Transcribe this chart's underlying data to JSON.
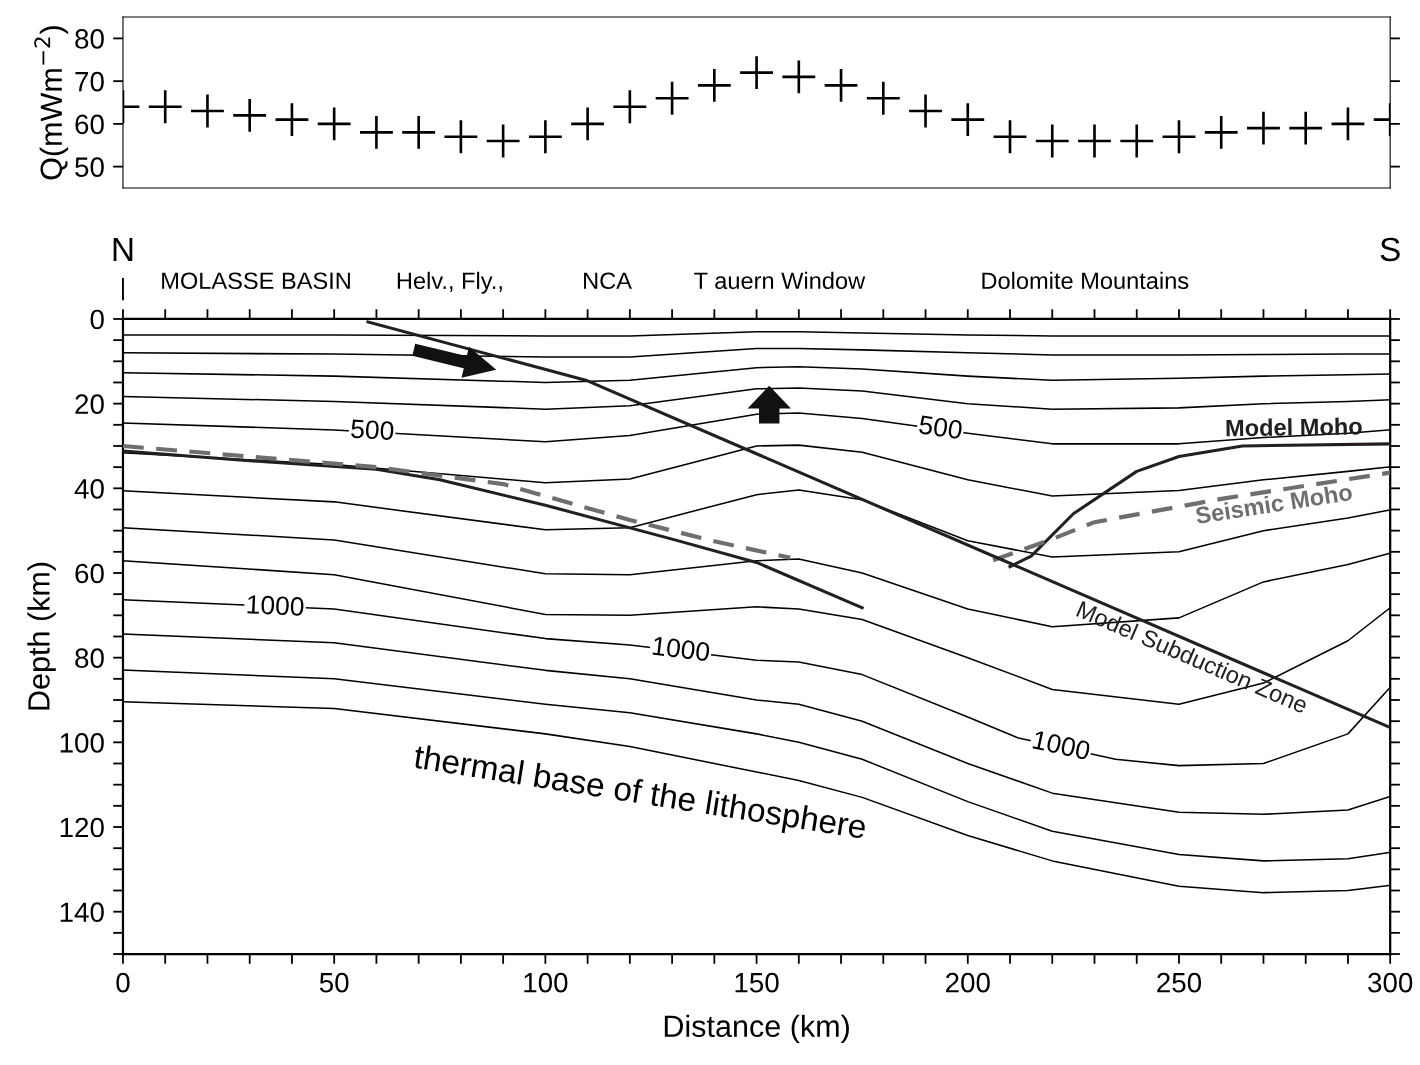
{
  "chart_data": [
    {
      "type": "scatter",
      "ylabel": "Q(mWm$^{−2}$)",
      "color": "#000000",
      "marker": "cross",
      "tick_labels": "y",
      "x": [
        0,
        10,
        20,
        30,
        40,
        50,
        60,
        70,
        80,
        90,
        100,
        110,
        120,
        130,
        140,
        150,
        160,
        170,
        180,
        190,
        200,
        210,
        220,
        230,
        240,
        250,
        260,
        270,
        280,
        290,
        300
      ],
      "values": [
        64,
        64,
        63,
        62,
        61,
        60,
        58,
        58,
        57,
        56,
        57,
        60,
        64,
        66,
        69,
        72,
        71,
        69,
        66,
        63,
        61,
        57,
        56,
        56,
        56,
        57,
        58,
        59,
        59,
        60,
        61
      ],
      "xlim": [
        0,
        300
      ],
      "ylim": [
        45,
        85
      ],
      "yticks": [
        50,
        60,
        70,
        80
      ]
    },
    {
      "type": "line",
      "xlabel": "Distance (km)",
      "ylabel": "Depth (km)",
      "xlim": [
        0,
        300
      ],
      "ylim": [
        150,
        0
      ],
      "xticks": [
        0,
        {
          "value": 10,
          "label": null
        },
        {
          "value": 20,
          "label": null
        },
        {
          "value": 30,
          "label": null
        },
        {
          "value": 40,
          "label": null
        },
        50,
        {
          "value": 60,
          "label": null
        },
        {
          "value": 70,
          "label": null
        },
        {
          "value": 80,
          "label": null
        },
        {
          "value": 90,
          "label": null
        },
        100,
        {
          "value": 110,
          "label": null
        },
        {
          "value": 120,
          "label": null
        },
        {
          "value": 130,
          "label": null
        },
        {
          "value": 140,
          "label": null
        },
        150,
        {
          "value": 160,
          "label": null
        },
        {
          "value": 170,
          "label": null
        },
        {
          "value": 180,
          "label": null
        },
        {
          "value": 190,
          "label": null
        },
        200,
        {
          "value": 210,
          "label": null
        },
        {
          "value": 220,
          "label": null
        },
        {
          "value": 230,
          "label": null
        },
        {
          "value": 240,
          "label": null
        },
        250,
        {
          "value": 260,
          "label": null
        },
        {
          "value": 270,
          "label": null
        },
        {
          "value": 280,
          "label": null
        },
        {
          "value": 290,
          "label": null
        },
        300
      ],
      "yticks": [
        0,
        {
          "value": 5,
          "label": null
        },
        {
          "value": 10,
          "label": null
        },
        {
          "value": 15,
          "label": null
        },
        20,
        {
          "value": 25,
          "label": null
        },
        {
          "value": 30,
          "label": null
        },
        {
          "value": 35,
          "label": null
        },
        40,
        {
          "value": 45,
          "label": null
        },
        {
          "value": 50,
          "label": null
        },
        {
          "value": 55,
          "label": null
        },
        60,
        {
          "value": 65,
          "label": null
        },
        {
          "value": 70,
          "label": null
        },
        {
          "value": 75,
          "label": null
        },
        80,
        {
          "value": 85,
          "label": null
        },
        {
          "value": 90,
          "label": null
        },
        {
          "value": 95,
          "label": null
        },
        100,
        {
          "value": 105,
          "label": null
        },
        {
          "value": 110,
          "label": null
        },
        {
          "value": 115,
          "label": null
        },
        120,
        {
          "value": 125,
          "label": null
        },
        {
          "value": 130,
          "label": null
        },
        {
          "value": 135,
          "label": null
        },
        140,
        {
          "value": 145,
          "label": null
        },
        {
          "value": 150,
          "label": null
        }
      ],
      "series": [
        {
          "color": "#000000",
          "x": [
            0,
            50,
            100,
            120,
            150,
            160,
            175,
            200,
            220,
            250,
            270,
            290,
            300
          ],
          "values": [
            3.8,
            3.8,
            4,
            4,
            3,
            3,
            3.3,
            3.8,
            4,
            4,
            4,
            4,
            4
          ]
        },
        {
          "color": "#000000",
          "x": [
            0,
            50,
            100,
            120,
            150,
            160,
            175,
            200,
            220,
            250,
            270,
            290,
            300
          ],
          "values": [
            8,
            8.3,
            9,
            9,
            7,
            7,
            7.3,
            8,
            8.5,
            8.5,
            8.4,
            8.3,
            8.3
          ]
        },
        {
          "color": "#000000",
          "x": [
            0,
            50,
            100,
            120,
            150,
            160,
            175,
            200,
            220,
            250,
            270,
            290,
            300
          ],
          "values": [
            12.7,
            13.5,
            15,
            14.5,
            11.5,
            11.3,
            11.8,
            13.5,
            14.5,
            14,
            13.5,
            13.2,
            13
          ]
        },
        {
          "color": "#000000",
          "x": [
            0,
            50,
            100,
            120,
            150,
            160,
            175,
            200,
            220,
            250,
            270,
            290,
            300
          ],
          "values": [
            18.3,
            19.5,
            21.3,
            20.5,
            16.5,
            16.3,
            17,
            20,
            21.3,
            21,
            20,
            19.5,
            19.1
          ]
        },
        {
          "color": "#000000",
          "x": [
            0,
            50,
            100,
            120,
            150,
            160,
            175,
            200,
            220,
            250,
            270,
            290,
            300
          ],
          "values": [
            24.6,
            26.2,
            29,
            27.5,
            22.5,
            22.2,
            23.5,
            27,
            29.5,
            29.5,
            28,
            27,
            26.2
          ]
        },
        {
          "color": "#000000",
          "x": [
            0,
            50,
            100,
            120,
            150,
            160,
            175,
            200,
            220,
            250,
            270,
            290,
            300
          ],
          "values": [
            31.6,
            34.4,
            38.7,
            37.8,
            30,
            29.8,
            31.5,
            38,
            41.8,
            40.5,
            38,
            36,
            34.9
          ]
        },
        {
          "color": "#000000",
          "x": [
            0,
            50,
            100,
            120,
            150,
            160,
            175,
            200,
            220,
            250,
            270,
            290,
            300
          ],
          "values": [
            40.6,
            43.2,
            49.8,
            49.3,
            41.5,
            40.4,
            42.7,
            52.4,
            56.2,
            55,
            50,
            47,
            45.1
          ]
        },
        {
          "color": "#000000",
          "x": [
            0,
            50,
            100,
            120,
            150,
            160,
            175,
            200,
            220,
            250,
            270,
            290,
            300
          ],
          "values": [
            49.3,
            52.2,
            60.2,
            60.4,
            57.1,
            56.7,
            60,
            68.5,
            72.7,
            70.6,
            62.1,
            58,
            55.3
          ]
        },
        {
          "color": "#000000",
          "x": [
            0,
            50,
            100,
            120,
            150,
            160,
            175,
            200,
            220,
            250,
            270,
            290,
            300
          ],
          "values": [
            57.1,
            60.4,
            69.8,
            70,
            68,
            68.5,
            71,
            80,
            87.5,
            91,
            86,
            76,
            68.2
          ]
        },
        {
          "color": "#000000",
          "x": [
            0,
            50,
            100,
            120,
            150,
            160,
            175,
            200,
            212,
            235,
            250,
            270,
            290,
            300
          ],
          "values": [
            66.3,
            68.5,
            75.5,
            77,
            80.6,
            81,
            84,
            94,
            99,
            104,
            105.5,
            105,
            98,
            87
          ]
        },
        {
          "color": "#000000",
          "x": [
            0,
            50,
            100,
            120,
            150,
            160,
            175,
            200,
            220,
            250,
            270,
            290,
            300
          ],
          "values": [
            74.4,
            76.5,
            83,
            85,
            90,
            91,
            95,
            105,
            112,
            116.5,
            117,
            116,
            112.8
          ]
        },
        {
          "color": "#000000",
          "x": [
            0,
            50,
            100,
            120,
            150,
            160,
            175,
            200,
            220,
            250,
            270,
            290,
            300
          ],
          "values": [
            82.9,
            85,
            91,
            93,
            98,
            100,
            104,
            114,
            121,
            126.5,
            128,
            127.5,
            126
          ]
        },
        {
          "color": "#000000",
          "x": [
            0,
            50,
            100,
            120,
            150,
            160,
            175,
            200,
            220,
            250,
            270,
            290,
            300
          ],
          "values": [
            90.4,
            92,
            98,
            101,
            107,
            109,
            113,
            122,
            128,
            134,
            135.5,
            135,
            133.8
          ]
        },
        {
          "color": "#231f20",
          "line_style": "solid",
          "x": [
            0,
            30,
            60,
            75,
            100,
            130,
            150,
            175
          ],
          "values": [
            31.2,
            33.5,
            35.5,
            38,
            44,
            52,
            57.5,
            68.2
          ]
        },
        {
          "color": "#6d6e71",
          "line_style": "dashed",
          "x": [
            0,
            60,
            90,
            120,
            140,
            158
          ],
          "values": [
            30,
            35,
            39,
            47.5,
            52.5,
            56.4
          ]
        },
        {
          "name": "Model Moho",
          "color": "#231f20",
          "line_style": "solid",
          "x": [
            210,
            215,
            225,
            240,
            250,
            265,
            300
          ],
          "values": [
            58.5,
            56,
            46,
            36,
            32.5,
            30,
            29.5
          ]
        },
        {
          "name": "Seismic Moho",
          "color": "#6d6e71",
          "line_style": "dashed",
          "x": [
            206,
            220,
            230,
            260,
            300
          ],
          "values": [
            57,
            52,
            48,
            42.5,
            36.3
          ]
        },
        {
          "name": "Model Subduction Zone",
          "color": "#231f20",
          "line_style": "solid",
          "x": [
            58,
            110,
            300
          ],
          "values": [
            0.7,
            14.6,
            96.5
          ]
        }
      ],
      "annotations": [
        "N",
        "S",
        "|",
        "MOLASSE BASIN",
        "Helv., Fly.,",
        "NCA",
        "T auern Window",
        "Dolomite Mountains",
        "thermal base of the lithosphere",
        {
          "text": "500",
          "x": 59,
          "y": 26.7
        },
        {
          "text": "500",
          "x": 193.5,
          "y": 26.1
        },
        {
          "text": "1000",
          "x": 36,
          "y": 68.2
        },
        {
          "text": "1000",
          "x": 132,
          "y": 78.44
        },
        {
          "text": "1000",
          "x": 222,
          "y": 101.17
        }
      ]
    }
  ]
}
